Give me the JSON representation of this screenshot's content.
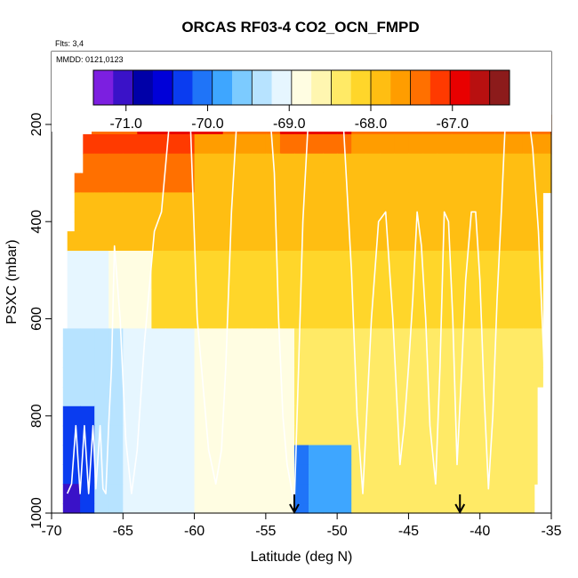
{
  "chart_data": {
    "type": "heatmap",
    "title": "ORCAS RF03-4 CO2_OCN_FMPD",
    "flights_note": "Flts: 3,4",
    "dates_note": "MMDD: 0121,0123",
    "xlabel": "Latitude (deg N)",
    "ylabel": "PSXC (mbar)",
    "xlim": [
      -70,
      -35
    ],
    "ylim": [
      1000,
      50
    ],
    "x_ticks": [
      -70,
      -65,
      -60,
      -55,
      -50,
      -45,
      -40,
      -35
    ],
    "y_ticks": [
      200,
      400,
      600,
      800,
      1000
    ],
    "colorbar": {
      "min": -71.4,
      "max": -66.3,
      "ticks": [
        -71.0,
        -70.0,
        -69.0,
        -68.0,
        -67.0
      ],
      "tick_labels": [
        "-71.0",
        "-70.0",
        "-69.0",
        "-68.0",
        "-67.0"
      ],
      "colors": [
        "#7c1fe0",
        "#3a12c8",
        "#0000a8",
        "#0000d8",
        "#0a3cf0",
        "#1f74f8",
        "#3ea6ff",
        "#7ccbff",
        "#b7e3ff",
        "#e6f6ff",
        "#fffde2",
        "#fff6b0",
        "#ffea66",
        "#ffd62a",
        "#ffbe12",
        "#ff9d00",
        "#ff7000",
        "#ff3a00",
        "#e80000",
        "#b81010",
        "#8c1b1b"
      ]
    },
    "grid_lat": [
      -69.2,
      -68,
      -67,
      -66,
      -65,
      -64,
      -63,
      -62,
      -61,
      -60,
      -59,
      -58,
      -57,
      -56,
      -55,
      -54,
      -53,
      -52,
      -51,
      -50,
      -49,
      -48,
      -47,
      -46,
      -45,
      -44,
      -43,
      -42,
      -41,
      -40,
      -39,
      -38,
      -37,
      -36,
      -35
    ],
    "grid_p": [
      180,
      220,
      260,
      300,
      340,
      380,
      420,
      460,
      500,
      540,
      580,
      620,
      660,
      700,
      740,
      780,
      820,
      860,
      900,
      940,
      980
    ],
    "flight_track": {
      "lat": [
        -68.9,
        -68.6,
        -68.3,
        -68.0,
        -67.7,
        -67.4,
        -67.1,
        -66.9,
        -66.6,
        -66.4,
        -66.2,
        -66.0,
        -65.8,
        -65.6,
        -65.2,
        -64.8,
        -64.4,
        -64.0,
        -63.5,
        -62.8,
        -62.3,
        -61.7,
        -60.9,
        -60.3,
        -59.8,
        -59.0,
        -58.5,
        -58.1,
        -57.8,
        -57.4,
        -57.0,
        -56.8,
        -56.4,
        -56.0,
        -55.6,
        -55.3,
        -55.0,
        -54.7,
        -54.4,
        -54.1,
        -53.8,
        -53.5,
        -53.2,
        -53.0,
        -52.7,
        -52.4,
        -52.0,
        -51.6,
        -51.2,
        -50.7,
        -50.2,
        -49.6,
        -49.0,
        -48.6,
        -48.2,
        -47.6,
        -47.1,
        -46.6,
        -46.1,
        -45.6,
        -45.3,
        -45.0,
        -44.7,
        -44.4,
        -44.1,
        -43.8,
        -43.5,
        -43.1,
        -42.8,
        -42.5,
        -42.2,
        -41.9,
        -41.6,
        -41.3,
        -41.0,
        -40.6,
        -40.3,
        -40.0,
        -39.7,
        -39.4,
        -39.1,
        -38.8,
        -38.5,
        -38.2,
        -37.9,
        -37.5,
        -37.0,
        -36.6,
        -36.3,
        -35.9,
        -35.5,
        -35.2
      ],
      "p": [
        960,
        940,
        820,
        960,
        820,
        960,
        820,
        950,
        820,
        950,
        960,
        820,
        700,
        450,
        600,
        850,
        960,
        870,
        650,
        420,
        380,
        180,
        180,
        180,
        600,
        870,
        940,
        870,
        700,
        380,
        180,
        180,
        180,
        180,
        180,
        180,
        180,
        180,
        300,
        600,
        800,
        900,
        950,
        980,
        700,
        400,
        180,
        180,
        180,
        180,
        180,
        180,
        500,
        800,
        960,
        600,
        400,
        380,
        600,
        900,
        820,
        700,
        560,
        380,
        450,
        600,
        820,
        940,
        700,
        380,
        400,
        600,
        900,
        720,
        520,
        380,
        380,
        520,
        760,
        950,
        800,
        560,
        380,
        180,
        180,
        180,
        180,
        180,
        250,
        420,
        700,
        900
      ]
    },
    "arrows_lat": [
      -53.0,
      -41.4
    ]
  }
}
